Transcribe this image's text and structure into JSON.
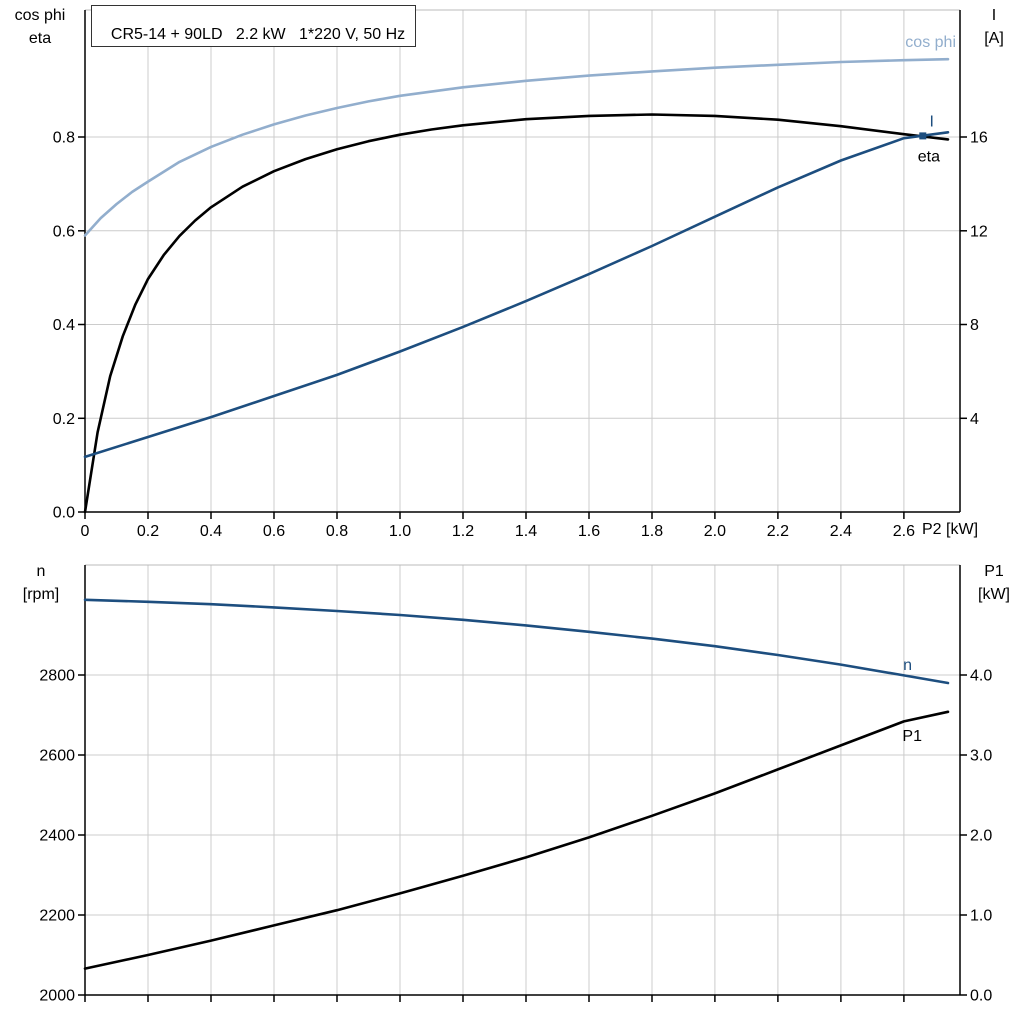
{
  "colors": {
    "grid": "#cccccc",
    "frame_top": "#bbbbbb",
    "axis": "#000000",
    "dark_blue": "#1d4e7f",
    "light_blue": "#92aecd",
    "black": "#000000"
  },
  "chart_data": [
    {
      "type": "line",
      "title": "CR5-14 + 90LD   2.2 kW   1*220 V, 50 Hz",
      "xlabel": "P2 [kW]",
      "corner_left": [
        "cos phi",
        "eta"
      ],
      "corner_right": [
        "I",
        "[A]"
      ],
      "x_range": [
        0,
        2.778
      ],
      "x_tick_values": [
        0,
        0.2,
        0.4,
        0.6,
        0.8,
        1.0,
        1.2,
        1.4,
        1.6,
        1.8,
        2.0,
        2.2,
        2.4,
        2.6
      ],
      "x_tick_labels": [
        "0",
        "0.2",
        "0.4",
        "0.6",
        "0.8",
        "1.0",
        "1.2",
        "1.4",
        "1.6",
        "1.8",
        "2.0",
        "2.2",
        "2.4",
        "2.6"
      ],
      "grid": true,
      "left_axis": {
        "label": "cos phi / eta",
        "range": [
          0,
          1.071
        ],
        "tick_values": [
          0,
          0.2,
          0.4,
          0.6,
          0.8
        ],
        "tick_labels": [
          "0.0",
          "0.2",
          "0.4",
          "0.6",
          "0.8"
        ]
      },
      "right_axis": {
        "label": "I [A]",
        "range": [
          0,
          21.42
        ],
        "tick_values": [
          4,
          8,
          12,
          16
        ],
        "tick_labels": [
          "4",
          "8",
          "12",
          "16"
        ]
      },
      "series": [
        {
          "id": "cos-phi",
          "name": "cos phi",
          "axis": "left",
          "color": "#92aecd",
          "label_anchor": "end",
          "label_dx": 8,
          "label_dy": -12,
          "points": [
            [
              0,
              0.59
            ],
            [
              0.05,
              0.627
            ],
            [
              0.1,
              0.657
            ],
            [
              0.15,
              0.683
            ],
            [
              0.2,
              0.705
            ],
            [
              0.3,
              0.747
            ],
            [
              0.4,
              0.779
            ],
            [
              0.5,
              0.805
            ],
            [
              0.6,
              0.827
            ],
            [
              0.7,
              0.846
            ],
            [
              0.8,
              0.862
            ],
            [
              0.9,
              0.876
            ],
            [
              1.0,
              0.888
            ],
            [
              1.2,
              0.906
            ],
            [
              1.4,
              0.92
            ],
            [
              1.6,
              0.931
            ],
            [
              1.8,
              0.94
            ],
            [
              2.0,
              0.948
            ],
            [
              2.2,
              0.954
            ],
            [
              2.4,
              0.96
            ],
            [
              2.6,
              0.964
            ],
            [
              2.74,
              0.966
            ]
          ]
        },
        {
          "id": "eta",
          "name": "eta",
          "axis": "left",
          "color": "#000000",
          "label_anchor": "end",
          "label_dx": -8,
          "label_dy": 22,
          "points": [
            [
              0,
              0
            ],
            [
              0.04,
              0.17
            ],
            [
              0.08,
              0.29
            ],
            [
              0.12,
              0.375
            ],
            [
              0.16,
              0.443
            ],
            [
              0.2,
              0.497
            ],
            [
              0.25,
              0.548
            ],
            [
              0.3,
              0.589
            ],
            [
              0.35,
              0.622
            ],
            [
              0.4,
              0.65
            ],
            [
              0.5,
              0.694
            ],
            [
              0.6,
              0.727
            ],
            [
              0.7,
              0.753
            ],
            [
              0.8,
              0.774
            ],
            [
              0.9,
              0.791
            ],
            [
              1.0,
              0.805
            ],
            [
              1.1,
              0.816
            ],
            [
              1.2,
              0.825
            ],
            [
              1.4,
              0.838
            ],
            [
              1.6,
              0.845
            ],
            [
              1.8,
              0.848
            ],
            [
              2.0,
              0.845
            ],
            [
              2.2,
              0.837
            ],
            [
              2.4,
              0.823
            ],
            [
              2.6,
              0.806
            ],
            [
              2.74,
              0.795
            ]
          ]
        },
        {
          "id": "i",
          "name": "I",
          "axis": "right",
          "color": "#1d4e7f",
          "label_anchor": "end",
          "label_dx": -14,
          "label_dy": -6,
          "marker_at": [
            2.66,
            16.05
          ],
          "marker_size": 7,
          "points": [
            [
              0,
              2.35
            ],
            [
              0.2,
              3.2
            ],
            [
              0.4,
              4.05
            ],
            [
              0.6,
              4.95
            ],
            [
              0.8,
              5.85
            ],
            [
              1.0,
              6.85
            ],
            [
              1.2,
              7.9
            ],
            [
              1.4,
              9.0
            ],
            [
              1.6,
              10.15
            ],
            [
              1.8,
              11.35
            ],
            [
              2.0,
              12.6
            ],
            [
              2.2,
              13.85
            ],
            [
              2.4,
              15.0
            ],
            [
              2.6,
              15.95
            ],
            [
              2.74,
              16.2
            ]
          ]
        }
      ]
    },
    {
      "type": "line",
      "title": "",
      "xlabel": "",
      "corner_left": [
        "n",
        "[rpm]"
      ],
      "corner_right": [
        "P1",
        "[kW]"
      ],
      "x_range": [
        0,
        2.778
      ],
      "x_tick_values": [
        0,
        0.2,
        0.4,
        0.6,
        0.8,
        1.0,
        1.2,
        1.4,
        1.6,
        1.8,
        2.0,
        2.2,
        2.4,
        2.6
      ],
      "x_tick_labels": [],
      "grid": true,
      "left_axis": {
        "label": "n [rpm]",
        "range": [
          2000,
          3075
        ],
        "tick_values": [
          2000,
          2200,
          2400,
          2600,
          2800
        ],
        "tick_labels": [
          "2000",
          "2200",
          "2400",
          "2600",
          "2800"
        ]
      },
      "right_axis": {
        "label": "P1 [kW]",
        "range": [
          0,
          5.375
        ],
        "tick_values": [
          0,
          1,
          2,
          3,
          4
        ],
        "tick_labels": [
          "0.0",
          "1.0",
          "2.0",
          "3.0",
          "4.0"
        ]
      },
      "series": [
        {
          "id": "n",
          "name": "n",
          "axis": "left",
          "color": "#1d4e7f",
          "label_anchor": "end",
          "label_dx": -36,
          "label_dy": -13,
          "points": [
            [
              0,
              2988
            ],
            [
              0.2,
              2983
            ],
            [
              0.4,
              2977
            ],
            [
              0.6,
              2969
            ],
            [
              0.8,
              2960
            ],
            [
              1.0,
              2950
            ],
            [
              1.2,
              2938
            ],
            [
              1.4,
              2924
            ],
            [
              1.6,
              2908
            ],
            [
              1.8,
              2891
            ],
            [
              2.0,
              2872
            ],
            [
              2.2,
              2850
            ],
            [
              2.4,
              2826
            ],
            [
              2.6,
              2799
            ],
            [
              2.74,
              2780
            ]
          ]
        },
        {
          "id": "p1",
          "name": "P1",
          "axis": "right",
          "color": "#000000",
          "label_anchor": "end",
          "label_dx": -26,
          "label_dy": 29,
          "points": [
            [
              0,
              0.33
            ],
            [
              0.2,
              0.5
            ],
            [
              0.4,
              0.68
            ],
            [
              0.6,
              0.87
            ],
            [
              0.8,
              1.06
            ],
            [
              1.0,
              1.27
            ],
            [
              1.2,
              1.49
            ],
            [
              1.4,
              1.72
            ],
            [
              1.6,
              1.97
            ],
            [
              1.8,
              2.24
            ],
            [
              2.0,
              2.52
            ],
            [
              2.2,
              2.82
            ],
            [
              2.4,
              3.12
            ],
            [
              2.6,
              3.42
            ],
            [
              2.74,
              3.54
            ]
          ]
        }
      ]
    }
  ]
}
